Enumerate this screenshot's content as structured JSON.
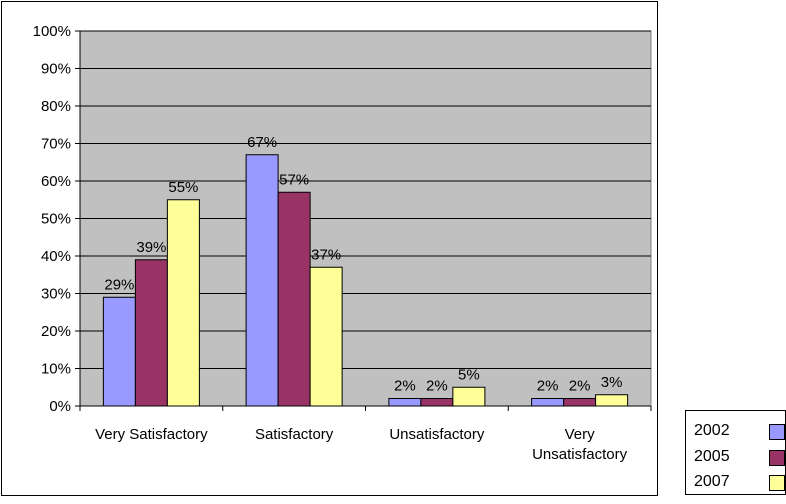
{
  "chart_data": {
    "type": "bar",
    "categories": [
      "Very Satisfactory",
      "Satisfactory",
      "Unsatisfactory",
      "Very Unsatisfactory"
    ],
    "category_lines": [
      [
        "Very Satisfactory"
      ],
      [
        "Satisfactory"
      ],
      [
        "Unsatisfactory"
      ],
      [
        "Very",
        "Unsatisfactory"
      ]
    ],
    "series": [
      {
        "name": "2002",
        "values": [
          29,
          67,
          2,
          2
        ],
        "labels": [
          "29%",
          "67%",
          "2%",
          "2%"
        ],
        "color": "#9999FF"
      },
      {
        "name": "2005",
        "values": [
          39,
          57,
          2,
          2
        ],
        "labels": [
          "39%",
          "57%",
          "2%",
          "2%"
        ],
        "color": "#993366"
      },
      {
        "name": "2007",
        "values": [
          55,
          37,
          5,
          3
        ],
        "labels": [
          "55%",
          "37%",
          "5%",
          "3%"
        ],
        "color": "#FFFF99"
      }
    ],
    "yticks": [
      "0%",
      "10%",
      "20%",
      "30%",
      "40%",
      "50%",
      "60%",
      "70%",
      "80%",
      "90%",
      "100%"
    ],
    "ylim": [
      0,
      100
    ],
    "title": "",
    "xlabel": "",
    "ylabel": "",
    "grid": true,
    "plot_background": "#C0C0C0",
    "legend_position": "bottom-right"
  }
}
